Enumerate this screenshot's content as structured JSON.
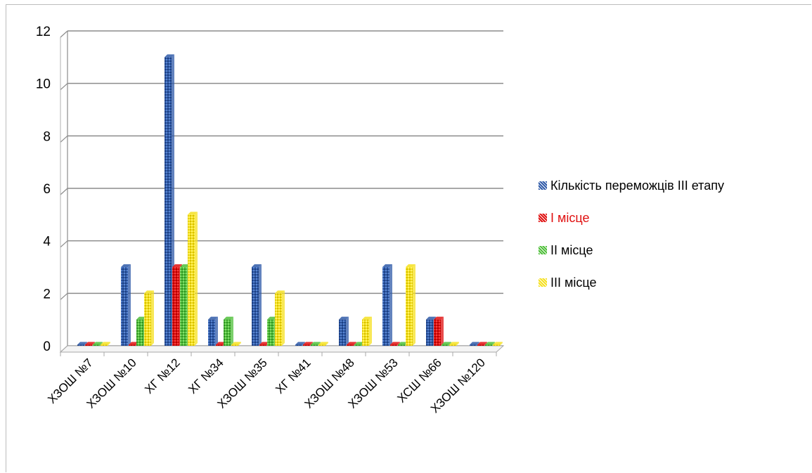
{
  "chart_data": {
    "type": "bar",
    "title": "",
    "xlabel": "",
    "ylabel": "",
    "ylim": [
      0,
      12
    ],
    "yticks": [
      0,
      2,
      4,
      6,
      8,
      10,
      12
    ],
    "grid": true,
    "legend_position": "right",
    "categories": [
      "ХЗОШ №7",
      "ХЗОШ №10",
      "ХГ №12",
      "ХГ №34",
      "ХЗОШ №35",
      "ХГ №41",
      "ХЗОШ №48",
      "ХЗОШ №53",
      "ХСШ №66",
      "ХЗОШ №120"
    ],
    "series": [
      {
        "name": "Кількість переможців ІІІ етапу",
        "color": "#2f5aa8",
        "label_color": "#000000",
        "values": [
          0,
          3,
          11,
          1,
          3,
          0,
          1,
          3,
          1,
          0
        ]
      },
      {
        "name": "І місце",
        "color": "#e01010",
        "label_color": "#e01010",
        "values": [
          0,
          0,
          3,
          0,
          0,
          0,
          0,
          0,
          1,
          0
        ]
      },
      {
        "name": "ІІ місце",
        "color": "#4fbf3a",
        "label_color": "#000000",
        "values": [
          0,
          1,
          3,
          1,
          1,
          0,
          0,
          0,
          0,
          0
        ]
      },
      {
        "name": "ІІІ місце",
        "color": "#f5e020",
        "label_color": "#000000",
        "values": [
          0,
          2,
          5,
          0,
          2,
          0,
          1,
          3,
          0,
          0
        ]
      }
    ]
  }
}
